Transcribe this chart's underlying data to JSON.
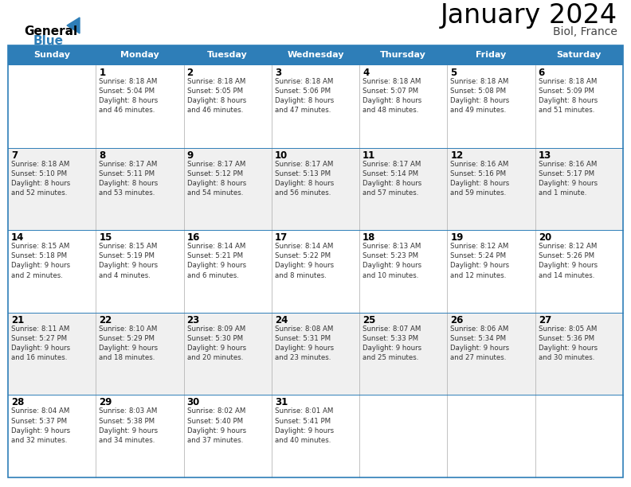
{
  "title": "January 2024",
  "subtitle": "Biol, France",
  "header_color": "#2E7EB8",
  "header_text_color": "#FFFFFF",
  "alt_row_color": "#F0F0F0",
  "white_color": "#FFFFFF",
  "border_color": "#2E7EB8",
  "grid_color": "#AAAAAA",
  "day_headers": [
    "Sunday",
    "Monday",
    "Tuesday",
    "Wednesday",
    "Thursday",
    "Friday",
    "Saturday"
  ],
  "title_color": "#000000",
  "subtitle_color": "#444444",
  "day_num_color": "#000000",
  "cell_text_color": "#333333",
  "logo_text1": "General",
  "logo_text2": "Blue",
  "logo_color1": "#000000",
  "logo_color2": "#2E7EB8",
  "calendar": [
    [
      "",
      "1\nSunrise: 8:18 AM\nSunset: 5:04 PM\nDaylight: 8 hours\nand 46 minutes.",
      "2\nSunrise: 8:18 AM\nSunset: 5:05 PM\nDaylight: 8 hours\nand 46 minutes.",
      "3\nSunrise: 8:18 AM\nSunset: 5:06 PM\nDaylight: 8 hours\nand 47 minutes.",
      "4\nSunrise: 8:18 AM\nSunset: 5:07 PM\nDaylight: 8 hours\nand 48 minutes.",
      "5\nSunrise: 8:18 AM\nSunset: 5:08 PM\nDaylight: 8 hours\nand 49 minutes.",
      "6\nSunrise: 8:18 AM\nSunset: 5:09 PM\nDaylight: 8 hours\nand 51 minutes."
    ],
    [
      "7\nSunrise: 8:18 AM\nSunset: 5:10 PM\nDaylight: 8 hours\nand 52 minutes.",
      "8\nSunrise: 8:17 AM\nSunset: 5:11 PM\nDaylight: 8 hours\nand 53 minutes.",
      "9\nSunrise: 8:17 AM\nSunset: 5:12 PM\nDaylight: 8 hours\nand 54 minutes.",
      "10\nSunrise: 8:17 AM\nSunset: 5:13 PM\nDaylight: 8 hours\nand 56 minutes.",
      "11\nSunrise: 8:17 AM\nSunset: 5:14 PM\nDaylight: 8 hours\nand 57 minutes.",
      "12\nSunrise: 8:16 AM\nSunset: 5:16 PM\nDaylight: 8 hours\nand 59 minutes.",
      "13\nSunrise: 8:16 AM\nSunset: 5:17 PM\nDaylight: 9 hours\nand 1 minute."
    ],
    [
      "14\nSunrise: 8:15 AM\nSunset: 5:18 PM\nDaylight: 9 hours\nand 2 minutes.",
      "15\nSunrise: 8:15 AM\nSunset: 5:19 PM\nDaylight: 9 hours\nand 4 minutes.",
      "16\nSunrise: 8:14 AM\nSunset: 5:21 PM\nDaylight: 9 hours\nand 6 minutes.",
      "17\nSunrise: 8:14 AM\nSunset: 5:22 PM\nDaylight: 9 hours\nand 8 minutes.",
      "18\nSunrise: 8:13 AM\nSunset: 5:23 PM\nDaylight: 9 hours\nand 10 minutes.",
      "19\nSunrise: 8:12 AM\nSunset: 5:24 PM\nDaylight: 9 hours\nand 12 minutes.",
      "20\nSunrise: 8:12 AM\nSunset: 5:26 PM\nDaylight: 9 hours\nand 14 minutes."
    ],
    [
      "21\nSunrise: 8:11 AM\nSunset: 5:27 PM\nDaylight: 9 hours\nand 16 minutes.",
      "22\nSunrise: 8:10 AM\nSunset: 5:29 PM\nDaylight: 9 hours\nand 18 minutes.",
      "23\nSunrise: 8:09 AM\nSunset: 5:30 PM\nDaylight: 9 hours\nand 20 minutes.",
      "24\nSunrise: 8:08 AM\nSunset: 5:31 PM\nDaylight: 9 hours\nand 23 minutes.",
      "25\nSunrise: 8:07 AM\nSunset: 5:33 PM\nDaylight: 9 hours\nand 25 minutes.",
      "26\nSunrise: 8:06 AM\nSunset: 5:34 PM\nDaylight: 9 hours\nand 27 minutes.",
      "27\nSunrise: 8:05 AM\nSunset: 5:36 PM\nDaylight: 9 hours\nand 30 minutes."
    ],
    [
      "28\nSunrise: 8:04 AM\nSunset: 5:37 PM\nDaylight: 9 hours\nand 32 minutes.",
      "29\nSunrise: 8:03 AM\nSunset: 5:38 PM\nDaylight: 9 hours\nand 34 minutes.",
      "30\nSunrise: 8:02 AM\nSunset: 5:40 PM\nDaylight: 9 hours\nand 37 minutes.",
      "31\nSunrise: 8:01 AM\nSunset: 5:41 PM\nDaylight: 9 hours\nand 40 minutes.",
      "",
      "",
      ""
    ]
  ]
}
